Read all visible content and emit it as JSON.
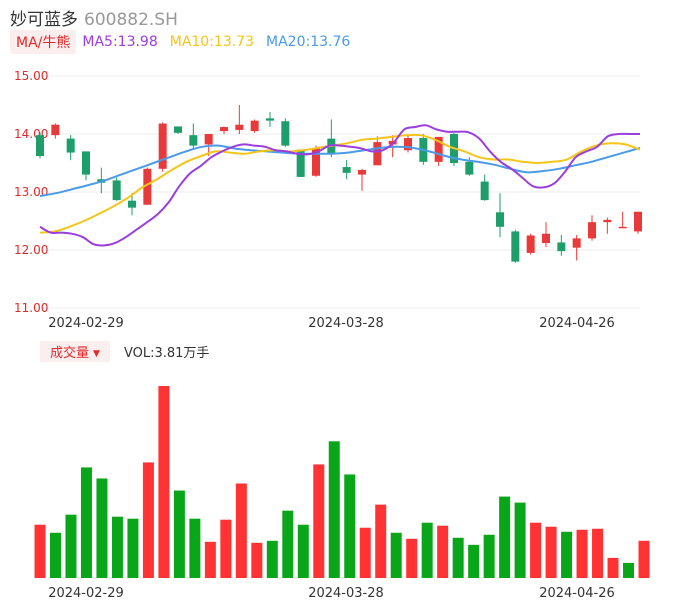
{
  "header": {
    "name": "妙可蓝多",
    "code": "600882.SH",
    "ma_button": "MA/牛熊",
    "ma5": "MA5:13.98",
    "ma10": "MA10:13.73",
    "ma20": "MA20:13.76"
  },
  "volume_header": {
    "button": "成交量",
    "text": "VOL:3.81万手"
  },
  "colors": {
    "up": "#e83a3a",
    "down": "#1d9e6b",
    "vol_up": "#ff3333",
    "vol_down": "#0aa61a",
    "ma5": "#9b3ee0",
    "ma10": "#f5c518",
    "ma20": "#4a9be8",
    "axis_label": "#e02b2b",
    "grid": "#ececec"
  },
  "chart_data": {
    "type": "candlestick",
    "y_ticks": [
      "15.00",
      "14.00",
      "13.00",
      "12.00",
      "11.00"
    ],
    "ylim": [
      11.0,
      15.0
    ],
    "x_labels": [
      "2024-02-29",
      "2024-03-28",
      "2024-04-26"
    ],
    "candles": [
      {
        "o": 13.98,
        "h": 14.03,
        "c": 13.62,
        "l": 13.58
      },
      {
        "o": 13.98,
        "h": 14.18,
        "c": 14.16,
        "l": 13.92
      },
      {
        "o": 13.92,
        "h": 13.98,
        "c": 13.68,
        "l": 13.55
      },
      {
        "o": 13.7,
        "h": 13.7,
        "c": 13.3,
        "l": 13.2
      },
      {
        "o": 13.22,
        "h": 13.42,
        "c": 13.16,
        "l": 12.98
      },
      {
        "o": 13.2,
        "h": 13.25,
        "c": 12.86,
        "l": 12.85
      },
      {
        "o": 12.85,
        "h": 12.98,
        "c": 12.73,
        "l": 12.6
      },
      {
        "o": 12.78,
        "h": 13.42,
        "c": 13.4,
        "l": 12.78
      },
      {
        "o": 13.4,
        "h": 14.2,
        "c": 14.18,
        "l": 13.35
      },
      {
        "o": 14.13,
        "h": 14.13,
        "c": 14.02,
        "l": 14.0
      },
      {
        "o": 13.98,
        "h": 14.18,
        "c": 13.8,
        "l": 13.75
      },
      {
        "o": 13.82,
        "h": 14.0,
        "c": 14.0,
        "l": 13.62
      },
      {
        "o": 14.05,
        "h": 14.13,
        "c": 14.12,
        "l": 14.0
      },
      {
        "o": 14.07,
        "h": 14.5,
        "c": 14.16,
        "l": 14.0
      },
      {
        "o": 14.05,
        "h": 14.25,
        "c": 14.23,
        "l": 14.02
      },
      {
        "o": 14.27,
        "h": 14.38,
        "c": 14.23,
        "l": 14.12
      },
      {
        "o": 14.22,
        "h": 14.27,
        "c": 13.8,
        "l": 13.78
      },
      {
        "o": 13.73,
        "h": 13.73,
        "c": 13.26,
        "l": 13.26
      },
      {
        "o": 13.28,
        "h": 13.8,
        "c": 13.76,
        "l": 13.26
      },
      {
        "o": 13.92,
        "h": 14.25,
        "c": 13.65,
        "l": 13.6
      },
      {
        "o": 13.43,
        "h": 13.55,
        "c": 13.33,
        "l": 13.22
      },
      {
        "o": 13.3,
        "h": 13.4,
        "c": 13.38,
        "l": 13.02
      },
      {
        "o": 13.46,
        "h": 13.96,
        "c": 13.86,
        "l": 13.46
      },
      {
        "o": 13.82,
        "h": 13.98,
        "c": 13.88,
        "l": 13.6
      },
      {
        "o": 13.72,
        "h": 13.98,
        "c": 13.93,
        "l": 13.68
      },
      {
        "o": 13.93,
        "h": 14.0,
        "c": 13.52,
        "l": 13.47
      },
      {
        "o": 13.52,
        "h": 13.95,
        "c": 13.95,
        "l": 13.45
      },
      {
        "o": 14.0,
        "h": 14.02,
        "c": 13.5,
        "l": 13.45
      },
      {
        "o": 13.52,
        "h": 13.6,
        "c": 13.3,
        "l": 13.28
      },
      {
        "o": 13.18,
        "h": 13.3,
        "c": 12.86,
        "l": 12.85
      },
      {
        "o": 12.65,
        "h": 12.98,
        "c": 12.4,
        "l": 12.22
      },
      {
        "o": 12.32,
        "h": 12.35,
        "c": 11.8,
        "l": 11.78
      },
      {
        "o": 11.95,
        "h": 12.28,
        "c": 12.25,
        "l": 11.92
      },
      {
        "o": 12.12,
        "h": 12.48,
        "c": 12.28,
        "l": 12.05
      },
      {
        "o": 12.13,
        "h": 12.26,
        "c": 11.98,
        "l": 11.9
      },
      {
        "o": 12.04,
        "h": 12.26,
        "c": 12.2,
        "l": 11.82
      },
      {
        "o": 12.2,
        "h": 12.6,
        "c": 12.48,
        "l": 12.16
      },
      {
        "o": 12.48,
        "h": 12.56,
        "c": 12.52,
        "l": 12.28
      },
      {
        "o": 12.38,
        "h": 12.66,
        "c": 12.4,
        "l": 12.38
      },
      {
        "o": 12.32,
        "h": 12.66,
        "c": 12.66,
        "l": 12.28
      }
    ],
    "ma5": [
      12.4,
      12.3,
      12.3,
      12.28,
      12.22,
      12.1,
      12.08,
      12.12,
      12.22,
      12.35,
      12.48,
      12.62,
      12.82,
      13.1,
      13.32,
      13.45,
      13.6,
      13.7,
      13.78,
      13.82,
      13.8,
      13.78,
      13.72,
      13.7,
      13.66,
      13.65,
      13.7,
      13.8,
      13.8,
      13.78,
      13.75,
      13.7,
      13.72,
      13.85,
      14.08,
      14.12,
      14.15,
      14.08,
      14.04,
      14.04,
      14.03,
      13.92,
      13.7,
      13.52,
      13.4,
      13.25,
      13.1,
      13.08,
      13.15,
      13.35,
      13.6,
      13.7,
      13.78,
      13.96,
      14.0,
      14.0,
      14.0
    ],
    "ma10": [
      12.3,
      12.32,
      12.4,
      12.5,
      12.62,
      12.75,
      12.9,
      13.08,
      13.22,
      13.38,
      13.52,
      13.62,
      13.7,
      13.68,
      13.66,
      13.7,
      13.72,
      13.7,
      13.72,
      13.76,
      13.8,
      13.84,
      13.9,
      13.92,
      13.95,
      13.98,
      13.98,
      13.9,
      13.78,
      13.7,
      13.6,
      13.56,
      13.56,
      13.52,
      13.5,
      13.52,
      13.56,
      13.7,
      13.8,
      13.84,
      13.82,
      13.73
    ],
    "ma20": [
      12.93,
      12.98,
      13.05,
      13.12,
      13.2,
      13.3,
      13.4,
      13.5,
      13.6,
      13.7,
      13.78,
      13.8,
      13.75,
      13.72,
      13.7,
      13.68,
      13.66,
      13.66,
      13.66,
      13.68,
      13.72,
      13.76,
      13.78,
      13.76,
      13.7,
      13.62,
      13.56,
      13.52,
      13.47,
      13.4,
      13.34,
      13.36,
      13.4,
      13.46,
      13.52,
      13.6,
      13.68,
      13.76
    ],
    "volume": [
      {
        "v": 53,
        "up": true
      },
      {
        "v": 45,
        "up": false
      },
      {
        "v": 63,
        "up": false
      },
      {
        "v": 110,
        "up": false
      },
      {
        "v": 99,
        "up": false
      },
      {
        "v": 61,
        "up": false
      },
      {
        "v": 59,
        "up": false
      },
      {
        "v": 115,
        "up": true
      },
      {
        "v": 191,
        "up": true
      },
      {
        "v": 87,
        "up": false
      },
      {
        "v": 59,
        "up": false
      },
      {
        "v": 36,
        "up": true
      },
      {
        "v": 58,
        "up": true
      },
      {
        "v": 94,
        "up": true
      },
      {
        "v": 35,
        "up": true
      },
      {
        "v": 37,
        "up": false
      },
      {
        "v": 67,
        "up": false
      },
      {
        "v": 53,
        "up": false
      },
      {
        "v": 113,
        "up": true
      },
      {
        "v": 136,
        "up": false
      },
      {
        "v": 103,
        "up": false
      },
      {
        "v": 50,
        "up": true
      },
      {
        "v": 73,
        "up": true
      },
      {
        "v": 45,
        "up": false
      },
      {
        "v": 39,
        "up": true
      },
      {
        "v": 55,
        "up": false
      },
      {
        "v": 52,
        "up": true
      },
      {
        "v": 40,
        "up": false
      },
      {
        "v": 33,
        "up": false
      },
      {
        "v": 43,
        "up": false
      },
      {
        "v": 81,
        "up": false
      },
      {
        "v": 75,
        "up": false
      },
      {
        "v": 55,
        "up": true
      },
      {
        "v": 51,
        "up": true
      },
      {
        "v": 46,
        "up": false
      },
      {
        "v": 48,
        "up": true
      },
      {
        "v": 49,
        "up": true
      },
      {
        "v": 20,
        "up": true
      },
      {
        "v": 15,
        "up": false
      },
      {
        "v": 37,
        "up": true
      }
    ],
    "volume_max": 191
  }
}
